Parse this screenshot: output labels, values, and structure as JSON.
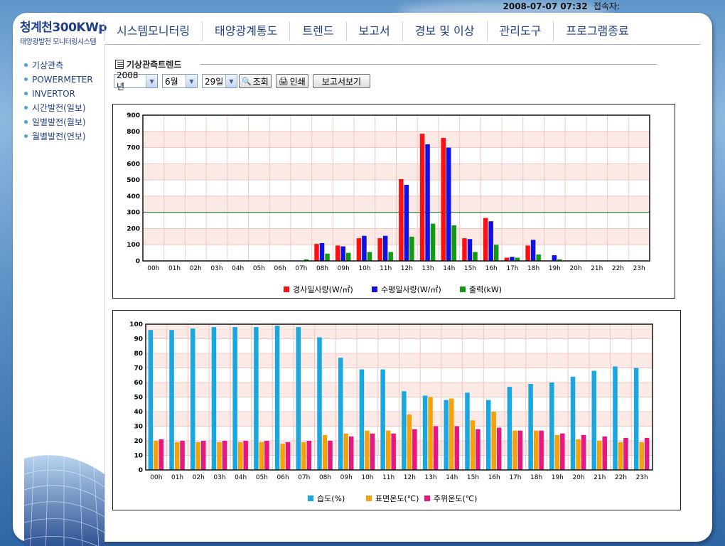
{
  "topbar": {
    "datetime": "2008-07-07 07:32",
    "conn_label": "접속자:"
  },
  "logo": {
    "title": "청계천300KWp",
    "subtitle": "태양광발전 모니터링시스템"
  },
  "nav": {
    "items": [
      "시스템모니터링",
      "태양광계통도",
      "트렌드",
      "보고서",
      "경보 및 이상",
      "관리도구",
      "프로그램종료"
    ]
  },
  "sidebar": {
    "items": [
      "기상관측",
      "POWERMETER",
      "INVERTOR",
      "시간발전(일보)",
      "일별발전(월보)",
      "월별발전(연보)"
    ]
  },
  "section": {
    "title": "기상관측트렌드"
  },
  "controls": {
    "year": "2008년",
    "month": "6월",
    "day": "29일",
    "search_label": "조회",
    "print_label": "인쇄",
    "report_label": "보고서보기"
  },
  "colors": {
    "red": "#ff1010",
    "blue": "#1010e8",
    "green": "#129a12",
    "cyan": "#19a7e0",
    "orange": "#f5a20a",
    "magenta": "#e8177f"
  },
  "chart_data": [
    {
      "type": "bar",
      "categories": [
        "00h",
        "01h",
        "02h",
        "03h",
        "04h",
        "05h",
        "06h",
        "07h",
        "08h",
        "09h",
        "10h",
        "11h",
        "12h",
        "13h",
        "14h",
        "15h",
        "16h",
        "17h",
        "18h",
        "19h",
        "20h",
        "21h",
        "22h",
        "23h"
      ],
      "series": [
        {
          "name": "경사일사량(W/㎡)",
          "color": "#ff1010",
          "values": [
            0,
            0,
            0,
            0,
            0,
            0,
            0,
            0,
            105,
            95,
            140,
            140,
            505,
            785,
            760,
            140,
            265,
            20,
            95,
            0,
            0,
            0,
            0,
            0
          ]
        },
        {
          "name": "수평일사량(W/㎡)",
          "color": "#1010e8",
          "values": [
            0,
            0,
            0,
            0,
            0,
            0,
            0,
            0,
            110,
            90,
            155,
            155,
            470,
            720,
            700,
            135,
            245,
            25,
            130,
            35,
            0,
            0,
            0,
            0
          ]
        },
        {
          "name": "출력(kW)",
          "color": "#129a12",
          "values": [
            0,
            0,
            0,
            0,
            0,
            0,
            0,
            10,
            45,
            50,
            55,
            55,
            150,
            230,
            220,
            55,
            100,
            20,
            40,
            10,
            0,
            0,
            0,
            0
          ]
        }
      ],
      "ylim": [
        0,
        900
      ],
      "yticks": [
        0,
        100,
        200,
        300,
        400,
        500,
        600,
        700,
        800,
        900
      ],
      "reference_line": 300,
      "grid": true,
      "legend": "bottom"
    },
    {
      "type": "bar",
      "categories": [
        "00h",
        "01h",
        "02h",
        "03h",
        "04h",
        "05h",
        "06h",
        "07h",
        "08h",
        "09h",
        "10h",
        "11h",
        "12h",
        "13h",
        "14h",
        "15h",
        "16h",
        "17h",
        "18h",
        "19h",
        "20h",
        "21h",
        "22h",
        "23h"
      ],
      "series": [
        {
          "name": "습도(%)",
          "color": "#19a7e0",
          "values": [
            96,
            96,
            97,
            98,
            98,
            98,
            99,
            98,
            91,
            77,
            69,
            69,
            54,
            51,
            48,
            53,
            48,
            57,
            59,
            60,
            64,
            68,
            71,
            70
          ]
        },
        {
          "name": "표면온도(℃)",
          "color": "#f5a20a",
          "values": [
            20,
            19,
            19,
            19,
            19,
            19,
            18,
            19,
            24,
            25,
            27,
            27,
            38,
            50,
            49,
            34,
            40,
            27,
            27,
            24,
            21,
            20,
            19,
            19
          ]
        },
        {
          "name": "주위온도(℃)",
          "color": "#e8177f",
          "values": [
            21,
            20,
            20,
            20,
            20,
            20,
            19,
            20,
            20,
            23,
            25,
            25,
            28,
            30,
            30,
            28,
            29,
            27,
            27,
            25,
            24,
            23,
            22,
            22
          ]
        }
      ],
      "ylim": [
        0,
        100
      ],
      "yticks": [
        0,
        10,
        20,
        30,
        40,
        50,
        60,
        70,
        80,
        90,
        100
      ],
      "grid": true,
      "legend": "bottom"
    }
  ]
}
